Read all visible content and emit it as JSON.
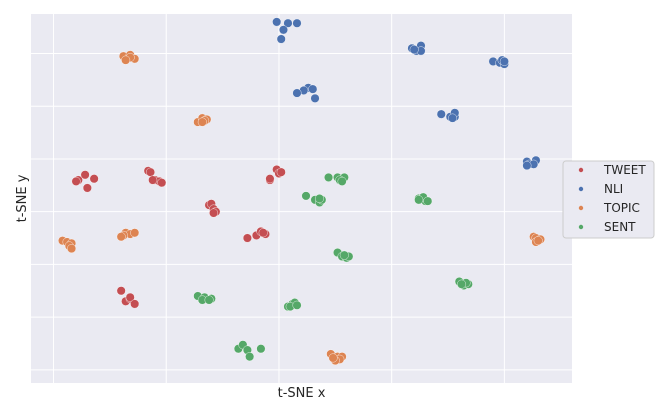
{
  "chart_data": {
    "type": "scatter",
    "xlabel": "t-SNE x",
    "ylabel": "t-SNE y",
    "grid": true,
    "legend_position": "right",
    "xlim": [
      -60,
      60
    ],
    "ylim": [
      -65,
      75
    ],
    "series": [
      {
        "name": "TWEET",
        "color": "#c44e52",
        "points": [
          [
            -48.0,
            14.0
          ],
          [
            -49.5,
            12.0
          ],
          [
            -46.0,
            12.5
          ],
          [
            -50.0,
            11.5
          ],
          [
            -47.5,
            9.0
          ],
          [
            -34.0,
            15.5
          ],
          [
            -33.5,
            15.0
          ],
          [
            -32.5,
            12.0
          ],
          [
            -31.5,
            11.5
          ],
          [
            -31.0,
            11.0
          ],
          [
            -33.0,
            12.0
          ],
          [
            -5.5,
            16.0
          ],
          [
            -5.0,
            14.5
          ],
          [
            -4.5,
            15.0
          ],
          [
            -7.0,
            12.0
          ],
          [
            -7.0,
            12.5
          ],
          [
            -20.5,
            2.5
          ],
          [
            -20.0,
            3.0
          ],
          [
            -19.5,
            1.0
          ],
          [
            -19.0,
            0.0
          ],
          [
            -19.5,
            -0.5
          ],
          [
            -8.0,
            -8.5
          ],
          [
            -10.0,
            -9.0
          ],
          [
            -9.0,
            -7.5
          ],
          [
            -8.5,
            -8.0
          ],
          [
            -12.0,
            -10.0
          ],
          [
            -40.0,
            -30.0
          ],
          [
            -39.0,
            -34.0
          ],
          [
            -38.0,
            -33.0
          ],
          [
            -38.0,
            -32.5
          ],
          [
            -37.0,
            -35.0
          ]
        ]
      },
      {
        "name": "NLI",
        "color": "#4c72b0",
        "points": [
          [
            -5.5,
            72.0
          ],
          [
            -3.0,
            71.5
          ],
          [
            -1.0,
            71.5
          ],
          [
            -4.0,
            69.0
          ],
          [
            -4.5,
            65.5
          ],
          [
            1.5,
            47.0
          ],
          [
            2.5,
            46.5
          ],
          [
            0.5,
            46.0
          ],
          [
            -1.0,
            45.0
          ],
          [
            3.0,
            43.0
          ],
          [
            24.5,
            62.0
          ],
          [
            25.5,
            61.0
          ],
          [
            26.5,
            63.0
          ],
          [
            26.5,
            61.0
          ],
          [
            25.0,
            61.5
          ],
          [
            42.5,
            57.0
          ],
          [
            44.0,
            56.5
          ],
          [
            45.0,
            56.0
          ],
          [
            44.5,
            57.5
          ],
          [
            45.0,
            57.0
          ],
          [
            31.0,
            37.0
          ],
          [
            33.0,
            36.0
          ],
          [
            34.0,
            36.0
          ],
          [
            34.0,
            37.5
          ],
          [
            33.5,
            35.5
          ],
          [
            50.0,
            19.0
          ],
          [
            50.5,
            18.0
          ],
          [
            52.0,
            19.5
          ],
          [
            51.5,
            18.0
          ],
          [
            50.0,
            17.5
          ]
        ]
      },
      {
        "name": "TOPIC",
        "color": "#dd8452",
        "points": [
          [
            -39.5,
            59.0
          ],
          [
            -38.0,
            59.5
          ],
          [
            -37.0,
            58.0
          ],
          [
            -38.0,
            58.5
          ],
          [
            -39.0,
            57.5
          ],
          [
            -23.0,
            34.0
          ],
          [
            -22.0,
            35.5
          ],
          [
            -21.0,
            35.0
          ],
          [
            -21.5,
            34.5
          ],
          [
            -22.0,
            34.0
          ],
          [
            -39.0,
            -8.0
          ],
          [
            -38.0,
            -8.5
          ],
          [
            -37.0,
            -8.0
          ],
          [
            -39.5,
            -9.0
          ],
          [
            -40.0,
            -9.5
          ],
          [
            -53.0,
            -11.0
          ],
          [
            -52.0,
            -11.5
          ],
          [
            -51.0,
            -12.0
          ],
          [
            -51.5,
            -13.0
          ],
          [
            -51.0,
            -14.0
          ],
          [
            51.5,
            -9.5
          ],
          [
            52.0,
            -10.0
          ],
          [
            53.0,
            -10.5
          ],
          [
            52.0,
            -11.5
          ],
          [
            52.5,
            -11.0
          ],
          [
            6.5,
            -54.0
          ],
          [
            8.0,
            -55.0
          ],
          [
            9.0,
            -55.0
          ],
          [
            8.5,
            -56.0
          ],
          [
            7.5,
            -56.5
          ],
          [
            7.0,
            -55.5
          ]
        ]
      },
      {
        "name": "SENT",
        "color": "#55a868",
        "points": [
          [
            6.0,
            13.0
          ],
          [
            8.0,
            13.0
          ],
          [
            9.5,
            13.0
          ],
          [
            8.5,
            12.0
          ],
          [
            9.0,
            11.5
          ],
          [
            1.0,
            6.0
          ],
          [
            3.0,
            4.5
          ],
          [
            4.0,
            3.5
          ],
          [
            4.5,
            4.5
          ],
          [
            4.0,
            5.0
          ],
          [
            26.0,
            5.0
          ],
          [
            27.5,
            4.0
          ],
          [
            27.0,
            5.5
          ],
          [
            28.0,
            4.0
          ],
          [
            26.0,
            4.5
          ],
          [
            8.0,
            -15.5
          ],
          [
            9.0,
            -17.0
          ],
          [
            10.0,
            -17.5
          ],
          [
            10.5,
            -17.0
          ],
          [
            9.5,
            -16.5
          ],
          [
            35.0,
            -26.5
          ],
          [
            36.0,
            -28.0
          ],
          [
            37.0,
            -27.5
          ],
          [
            36.5,
            -27.0
          ],
          [
            35.5,
            -27.5
          ],
          [
            -23.0,
            -32.0
          ],
          [
            -21.5,
            -32.5
          ],
          [
            -20.0,
            -33.0
          ],
          [
            -22.0,
            -33.5
          ],
          [
            -20.5,
            -33.5
          ],
          [
            -3.0,
            -36.0
          ],
          [
            -2.0,
            -35.0
          ],
          [
            -1.5,
            -34.5
          ],
          [
            -2.5,
            -36.0
          ],
          [
            -1.0,
            -35.5
          ],
          [
            -14.0,
            -52.0
          ],
          [
            -13.0,
            -50.5
          ],
          [
            -12.0,
            -52.5
          ],
          [
            -11.5,
            -55.0
          ],
          [
            -9.0,
            -52.0
          ]
        ]
      }
    ]
  }
}
